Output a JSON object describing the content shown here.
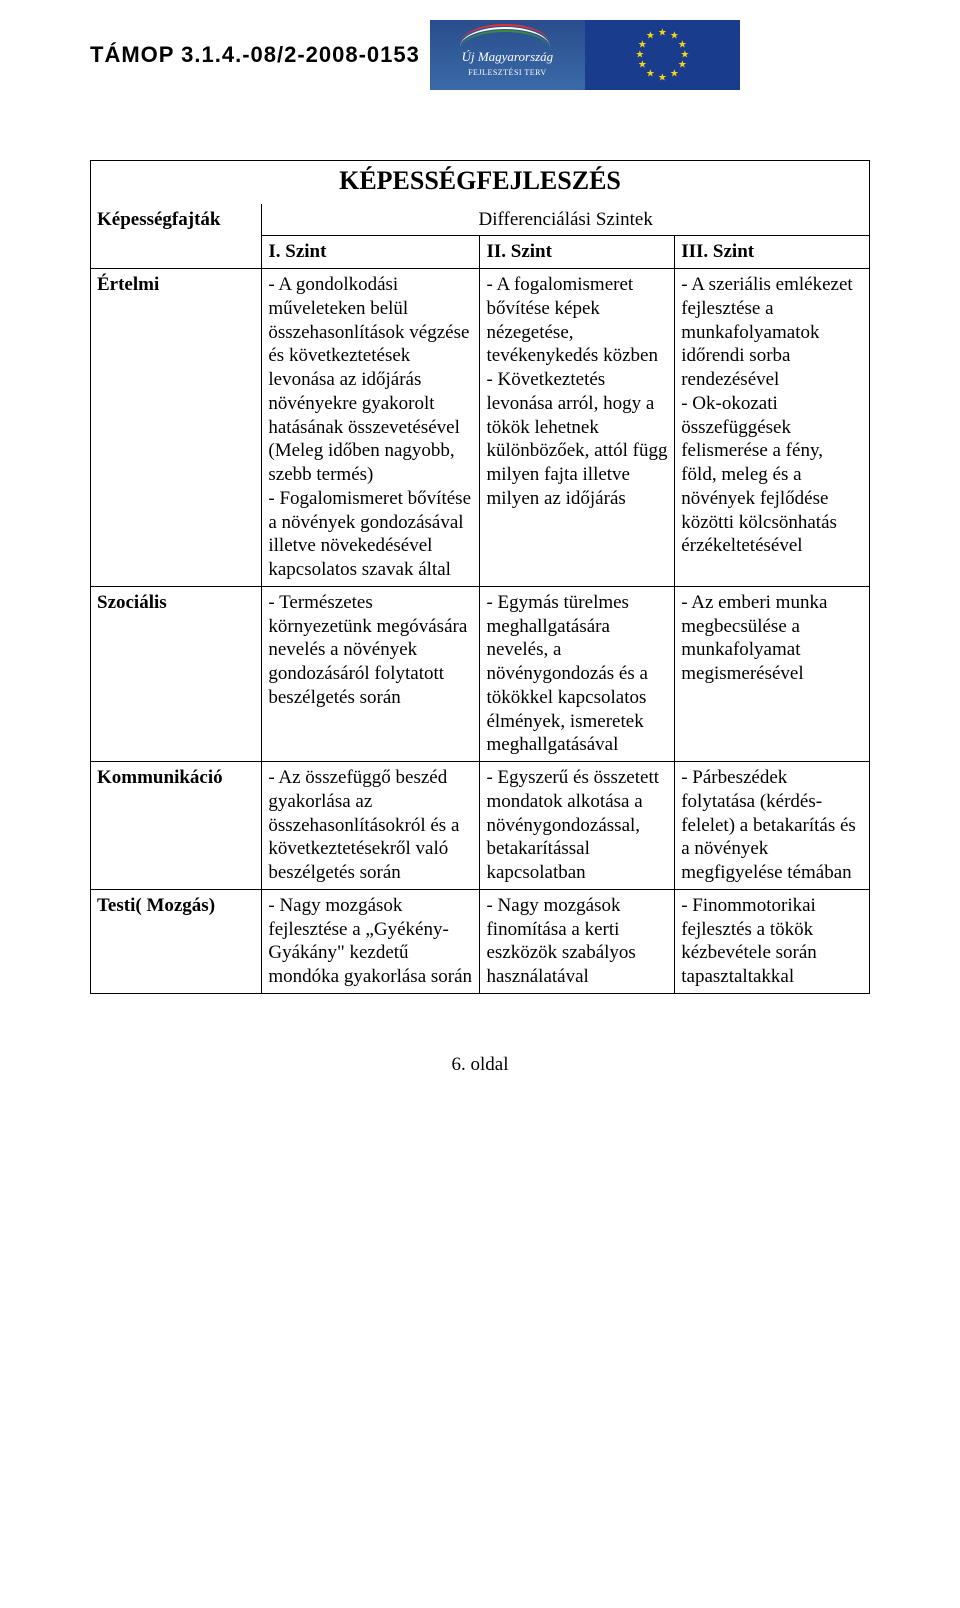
{
  "header": {
    "code": "TÁMOP 3.1.4.-08/2-2008-0153",
    "logo_hu_line1": "Új",
    "logo_hu_line2": "Magyarország",
    "logo_hu_sub": "FEJLESZTÉSI TERV"
  },
  "title": "KÉPESSÉGFEJLESZÉS",
  "table": {
    "col_header_0": "Képességfajták",
    "diff_header": "Differenciálási Szintek",
    "szint1": "I. Szint",
    "szint2": "II. Szint",
    "szint3": "III. Szint",
    "rows": [
      {
        "label": "Értelmi",
        "c1": "- A gondolkodási műveleteken belül összehasonlítások végzése és következtetések levonása az időjárás növényekre gyakorolt hatásának összevetésével (Meleg időben nagyobb, szebb termés)\n- Fogalomismeret bővítése a növények gondozásával illetve növekedésével kapcsolatos szavak által",
        "c2": "- A fogalomismeret bővítése képek nézegetése, tevékenykedés közben\n- Következtetés levonása arról, hogy a tökök lehetnek különbözőek, attól függ milyen fajta illetve milyen az időjárás",
        "c3": "- A szeriális emlékezet fejlesztése a munkafolyamatok időrendi sorba rendezésével\n- Ok-okozati összefüggések felismerése a fény, föld, meleg és a növények fejlődése közötti kölcsönhatás érzékeltetésével"
      },
      {
        "label": "Szociális",
        "c1": "- Természetes környezetünk megóvására nevelés a növények gondozásáról folytatott beszélgetés során",
        "c2": "- Egymás türelmes meghallgatására nevelés, a növénygondozás és a tökökkel kapcsolatos élmények, ismeretek meghallgatásával",
        "c3": "- Az emberi munka megbecsülése a munkafolyamat megismerésével"
      },
      {
        "label": "Kommunikáció",
        "c1": "- Az összefüggő beszéd gyakorlása az összehasonlításokról és a következtetésekről való beszélgetés során",
        "c2": "- Egyszerű és összetett mondatok alkotása a növénygondozással, betakarítással kapcsolatban",
        "c3": "- Párbeszédek folytatása (kérdés-felelet) a betakarítás és a növények megfigyelése témában"
      },
      {
        "label": "Testi( Mozgás)",
        "c1": "- Nagy mozgások fejlesztése a „Gyékény-Gyákány\" kezdetű mondóka gyakorlása során",
        "c2": "- Nagy mozgások finomítása a kerti eszközök szabályos használatával",
        "c3": "- Finommotorikai fejlesztés a tökök kézbevétele során tapasztaltakkal"
      }
    ]
  },
  "footer": {
    "page": "6. oldal"
  },
  "colors": {
    "text": "#000000",
    "background": "#ffffff",
    "border": "#000000",
    "logo_hu_bg": "#2a4d8c",
    "logo_eu_bg": "#1a3c8c",
    "eu_star": "#f7d417"
  }
}
